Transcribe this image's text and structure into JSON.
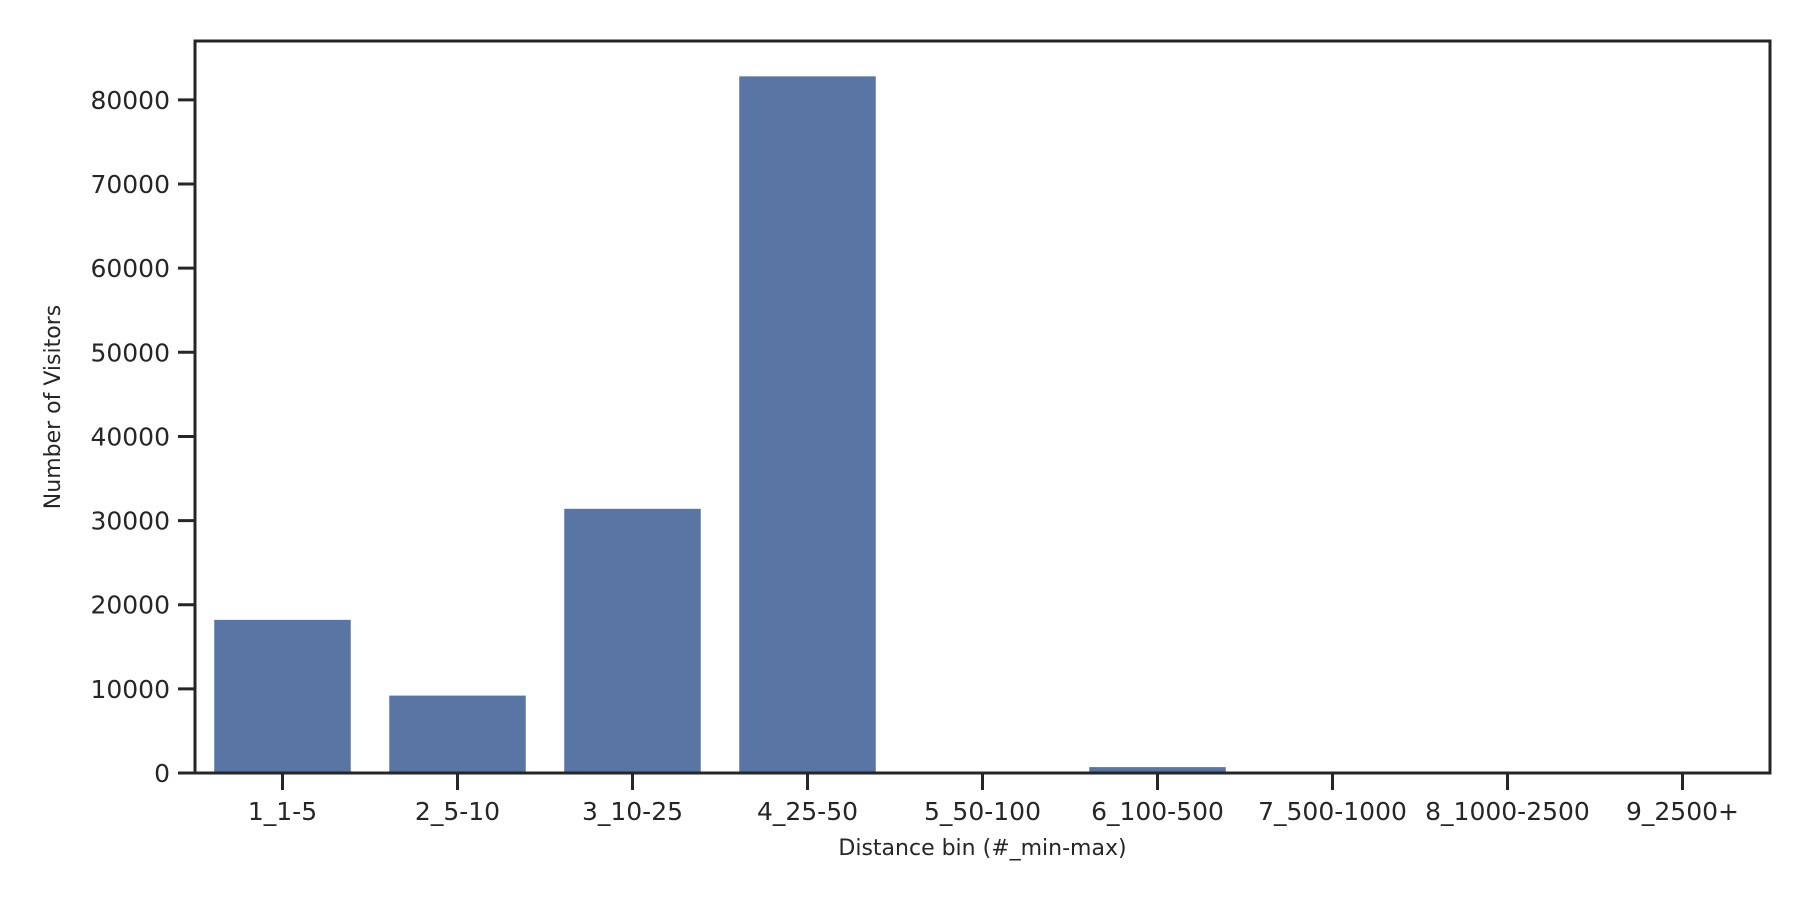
{
  "chart_data": {
    "type": "bar",
    "categories": [
      "1_1-5",
      "2_5-10",
      "3_10-25",
      "4_25-50",
      "5_50-100",
      "6_100-500",
      "7_500-1000",
      "8_1000-2500",
      "9_2500+"
    ],
    "values": [
      18200,
      9200,
      31400,
      82800,
      0,
      700,
      0,
      0,
      0
    ],
    "title": "",
    "xlabel": "Distance bin (#_min-max)",
    "ylabel": "Number of Visitors",
    "ylim": [
      0,
      87000
    ],
    "yticks": [
      0,
      10000,
      20000,
      30000,
      40000,
      50000,
      60000,
      70000,
      80000
    ],
    "grid": false,
    "legend": "none",
    "bar_color": "#5975a4",
    "axis_color": "#262626"
  }
}
